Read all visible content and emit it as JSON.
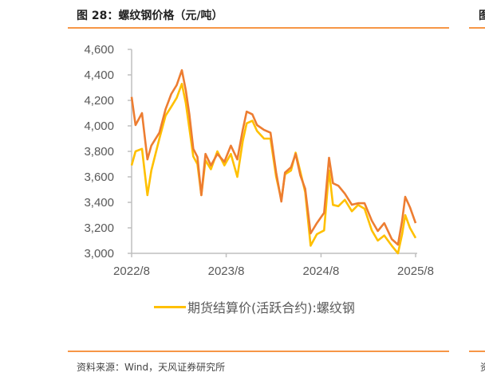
{
  "header": {
    "title": "图 28：螺纹钢价格（元/吨）",
    "next_title_fragment": "图"
  },
  "footer": {
    "source": "资料来源：Wind，天风证券研究所",
    "next_source_fragment": "资"
  },
  "colors": {
    "accent_rule": "#F79646",
    "futures": "#FFC000",
    "second_series": "#ED7D31"
  },
  "chart_data": {
    "type": "line",
    "title": "",
    "xlabel": "",
    "ylabel": "",
    "ylim": [
      3000,
      4600
    ],
    "yticks": [
      3000,
      3200,
      3400,
      3600,
      3800,
      4000,
      4200,
      4400,
      4600
    ],
    "ytick_labels": [
      "3,000",
      "3,200",
      "3,400",
      "3,600",
      "3,800",
      "4,000",
      "4,200",
      "4,400",
      "4,600"
    ],
    "xlim": [
      "2022-08-01",
      "2025-08-01"
    ],
    "xticks": [
      "2022-08-01",
      "2023-08-01",
      "2024-08-01",
      "2025-08-01"
    ],
    "xtick_labels": [
      "2022/8",
      "2023/8",
      "2024/8",
      "2025/8"
    ],
    "grid": false,
    "legend_position": "bottom",
    "x": [
      "2022-08-01",
      "2022-08-16",
      "2022-09-10",
      "2022-10-01",
      "2022-10-16",
      "2022-11-16",
      "2022-12-10",
      "2023-01-01",
      "2023-01-22",
      "2023-02-11",
      "2023-02-26",
      "2023-03-12",
      "2023-03-27",
      "2023-04-12",
      "2023-04-27",
      "2023-05-13",
      "2023-06-03",
      "2023-06-28",
      "2023-07-25",
      "2023-08-19",
      "2023-09-13",
      "2023-10-04",
      "2023-10-19",
      "2023-11-10",
      "2023-11-28",
      "2023-12-25",
      "2024-01-19",
      "2024-02-10",
      "2024-03-01",
      "2024-03-15",
      "2024-04-07",
      "2024-04-25",
      "2024-05-13",
      "2024-06-01",
      "2024-06-22",
      "2024-07-16",
      "2024-08-13",
      "2024-09-01",
      "2024-09-16",
      "2024-10-07",
      "2024-11-01",
      "2024-11-28",
      "2024-12-22",
      "2025-01-16",
      "2025-02-13",
      "2025-03-08",
      "2025-04-02",
      "2025-05-01",
      "2025-05-25",
      "2025-06-10",
      "2025-06-22",
      "2025-07-10",
      "2025-08-01"
    ],
    "series": [
      {
        "name": "期货结算价(活跃合约):螺纹钢",
        "color": "#FFC000",
        "values": [
          3690,
          3800,
          3820,
          3456,
          3650,
          3900,
          4080,
          4150,
          4220,
          4330,
          4180,
          3980,
          3760,
          3700,
          3456,
          3730,
          3660,
          3800,
          3690,
          3780,
          3600,
          3880,
          4020,
          4040,
          3960,
          3900,
          3900,
          3600,
          3420,
          3620,
          3650,
          3790,
          3640,
          3480,
          3060,
          3150,
          3180,
          3650,
          3380,
          3370,
          3420,
          3330,
          3380,
          3350,
          3180,
          3100,
          3140,
          3060,
          3000,
          3150,
          3300,
          3200,
          3120
        ]
      },
      {
        "color": "#ED7D31",
        "values": [
          4227,
          4006,
          4100,
          3737,
          3845,
          3946,
          4131,
          4250,
          4320,
          4437,
          4280,
          4090,
          3820,
          3756,
          3456,
          3780,
          3690,
          3780,
          3718,
          3845,
          3737,
          3968,
          4112,
          4090,
          4006,
          3968,
          3946,
          3634,
          3406,
          3634,
          3675,
          3780,
          3612,
          3506,
          3156,
          3237,
          3318,
          3750,
          3550,
          3530,
          3468,
          3381,
          3393,
          3393,
          3256,
          3175,
          3237,
          3112,
          3068,
          3256,
          3443,
          3362,
          3237
        ]
      }
    ]
  }
}
